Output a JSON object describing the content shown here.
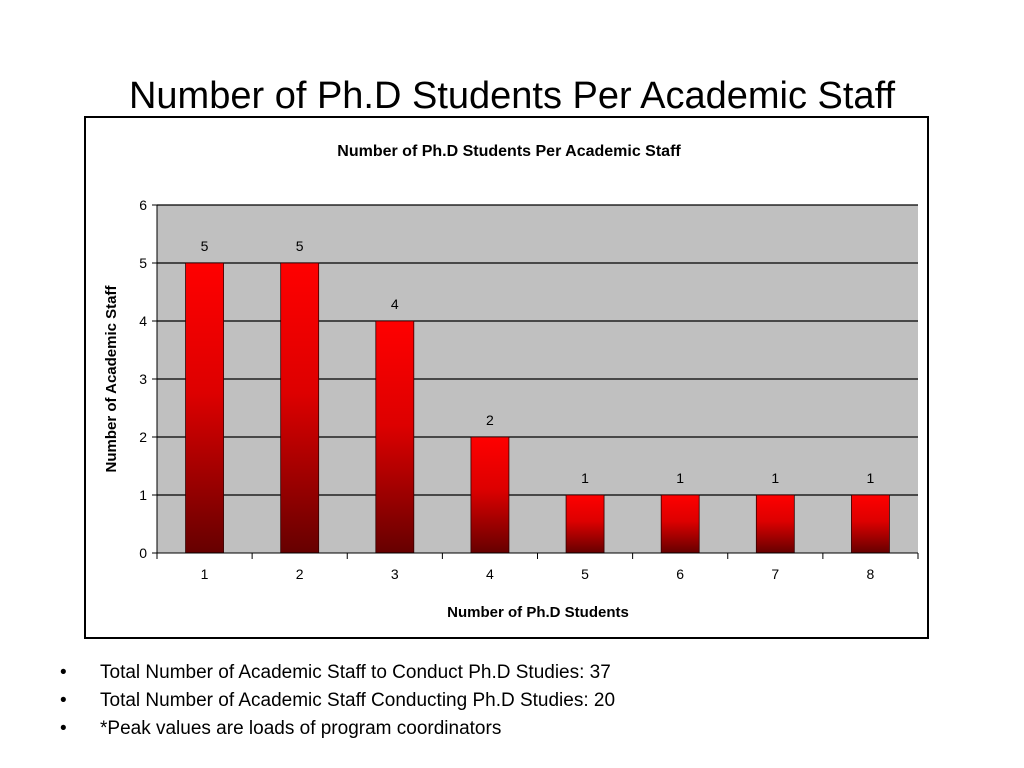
{
  "slide": {
    "title": "Number of Ph.D Students Per Academic Staff",
    "bullets": [
      "Total Number of Academic Staff to Conduct Ph.D Studies: 37",
      "Total Number of Academic Staff Conducting Ph.D Studies: 20",
      "*Peak values are loads of program coordinators"
    ],
    "bullet_symbol": "•"
  },
  "chart_data": {
    "type": "bar",
    "title": "Number of Ph.D Students Per Academic Staff",
    "xlabel": "Number of Ph.D Students",
    "ylabel": "Number of Academic Staff",
    "categories": [
      "1",
      "2",
      "3",
      "4",
      "5",
      "6",
      "7",
      "8"
    ],
    "values": [
      5,
      5,
      4,
      2,
      1,
      1,
      1,
      1
    ],
    "ylim": [
      0,
      6
    ],
    "yticks": [
      "0",
      "1",
      "2",
      "3",
      "4",
      "5",
      "6"
    ],
    "data_labels": true,
    "grid": true,
    "legend": "none",
    "colors": {
      "plot_background": "#c0c0c0",
      "bar_light": "#ff0000",
      "bar_dark": "#660000",
      "gridline": "#000000"
    }
  }
}
